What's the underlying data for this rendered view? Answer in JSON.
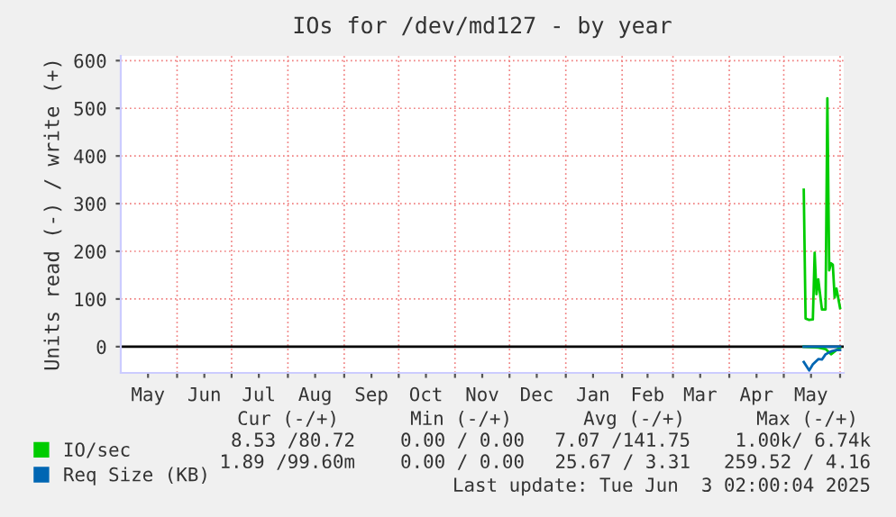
{
  "chart_data": {
    "type": "line",
    "title": "IOs for /dev/md127 - by year",
    "ylabel": "Units read (-) / write (+)",
    "series": [
      {
        "name": "IO/sec",
        "color": "#00cc00",
        "x": [
          "2025-05-12",
          "2025-05-13",
          "2025-05-15",
          "2025-05-17",
          "2025-05-18",
          "2025-05-19",
          "2025-05-20",
          "2025-05-22",
          "2025-05-24",
          "2025-05-25",
          "2025-05-26",
          "2025-05-27",
          "2025-05-28",
          "2025-05-29",
          "2025-05-30",
          "2025-06-01"
        ],
        "values": [
          329,
          59,
          56,
          57,
          197,
          110,
          141,
          78,
          78,
          521,
          160,
          175,
          172,
          103,
          122,
          81
        ]
      },
      {
        "color": "#00cc00",
        "x": [
          "2025-05-12",
          "2025-05-20",
          "2025-05-24",
          "2025-05-27",
          "2025-05-30",
          "2025-06-01"
        ],
        "values": [
          0,
          -2,
          -5,
          -16,
          -7,
          -2
        ]
      },
      {
        "name": "Req Size (KB)",
        "color": "#0066b3",
        "x": [
          "2025-05-12",
          "2025-05-15",
          "2025-05-17",
          "2025-05-20",
          "2025-05-22",
          "2025-05-24",
          "2025-05-27",
          "2025-05-30",
          "2025-06-01"
        ],
        "values": [
          -32,
          -50,
          -37,
          -26,
          -27,
          -16,
          -10,
          -7,
          -7
        ]
      },
      {
        "color": "#0066b3",
        "x": [
          "2025-05-12",
          "2025-05-20",
          "2025-05-27",
          "2025-06-01"
        ],
        "values": [
          0,
          0,
          0,
          0
        ]
      }
    ],
    "xlim": [
      "2024-05-01",
      "2025-06-03"
    ],
    "xticks": [
      {
        "value": "2024-05-16",
        "label": "May"
      },
      {
        "value": "2024-06-01",
        "label": null
      },
      {
        "value": "2024-06-16",
        "label": "Jun"
      },
      {
        "value": "2024-07-01",
        "label": null
      },
      {
        "value": "2024-07-16",
        "label": "Jul"
      },
      {
        "value": "2024-08-01",
        "label": null
      },
      {
        "value": "2024-08-16",
        "label": "Aug"
      },
      {
        "value": "2024-09-01",
        "label": null
      },
      {
        "value": "2024-09-16",
        "label": "Sep"
      },
      {
        "value": "2024-10-01",
        "label": null
      },
      {
        "value": "2024-10-16",
        "label": "Oct"
      },
      {
        "value": "2024-11-01",
        "label": null
      },
      {
        "value": "2024-11-16",
        "label": "Nov"
      },
      {
        "value": "2024-12-01",
        "label": null
      },
      {
        "value": "2024-12-16",
        "label": "Dec"
      },
      {
        "value": "2025-01-01",
        "label": null
      },
      {
        "value": "2025-01-16",
        "label": "Jan"
      },
      {
        "value": "2025-02-01",
        "label": null
      },
      {
        "value": "2025-02-15",
        "label": "Feb"
      },
      {
        "value": "2025-03-01",
        "label": null
      },
      {
        "value": "2025-03-16",
        "label": "Mar"
      },
      {
        "value": "2025-04-01",
        "label": null
      },
      {
        "value": "2025-04-16",
        "label": "Apr"
      },
      {
        "value": "2025-05-01",
        "label": null
      },
      {
        "value": "2025-05-16",
        "label": "May"
      },
      {
        "value": "2025-06-01",
        "label": null
      }
    ],
    "ylim": [
      -55,
      610
    ],
    "yticks": [
      0,
      100,
      200,
      300,
      400,
      500,
      600
    ],
    "ref_lines": [
      {
        "axis": "y",
        "value": 0,
        "color": "#000000"
      }
    ],
    "grid": true,
    "legend": "bottom",
    "line_style": "solid",
    "annotations": [
      "Cur (-/+)",
      "Min (-/+)",
      "Avg (-/+)",
      "Max (-/+)",
      "8.53 /80.72",
      "0.00 / 0.00",
      "7.07 /141.75",
      "1.00k/ 6.74k",
      "1.89 /99.60m",
      "0.00 / 0.00",
      "25.67 / 3.31",
      "259.52 / 4.16",
      "Last update: Tue Jun  3 02:00:04 2025"
    ]
  }
}
